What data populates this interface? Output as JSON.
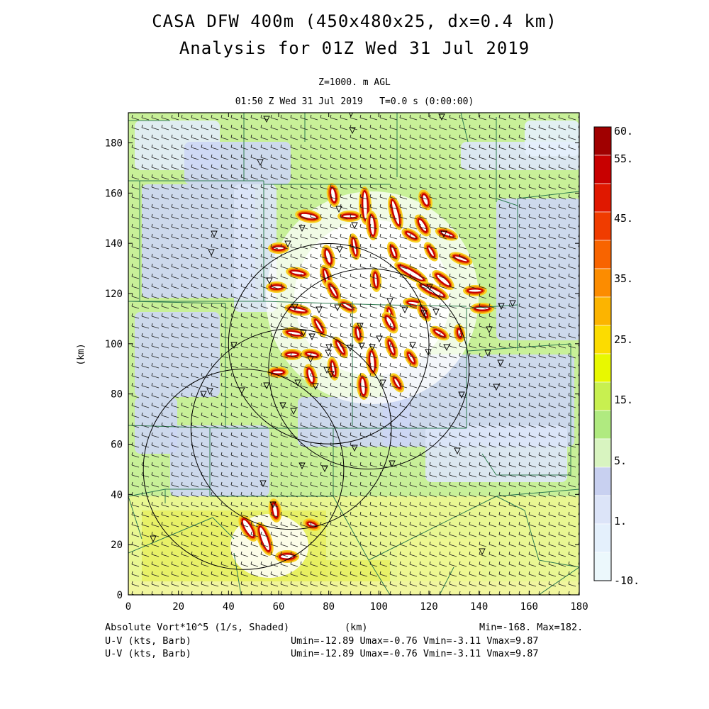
{
  "header": {
    "title_line1": "CASA DFW 400m (450x480x25, dx=0.4 km)",
    "title_line2": "Analysis for 01Z Wed 31 Jul 2019",
    "level": "Z=1000. m AGL",
    "valid_time": "01:50 Z Wed 31 Jul 2019",
    "time_step": "T=0.0 s (0:00:00)"
  },
  "axes": {
    "x_ticks": [
      "0",
      "20",
      "40",
      "60",
      "80",
      "100",
      "120",
      "140",
      "160",
      "180"
    ],
    "y_ticks": [
      "0",
      "20",
      "40",
      "60",
      "80",
      "100",
      "120",
      "140",
      "160",
      "180"
    ],
    "x_label": "(km)",
    "y_label": "(km)",
    "x_range": [
      0,
      180
    ],
    "y_range": [
      0,
      192
    ]
  },
  "colorbar": {
    "labels": [
      "60.",
      "55.",
      "45.",
      "35.",
      "25.",
      "15.",
      "5.",
      "1.",
      "-10."
    ],
    "colors": [
      "#a00000",
      "#c80000",
      "#e01800",
      "#f03c00",
      "#f86400",
      "#fc8c00",
      "#fcb400",
      "#fcdc00",
      "#e8f800",
      "#c8f050",
      "#b0ea80",
      "#d8f4c0",
      "#c8d0f0",
      "#dce4f8",
      "#e4f0fc",
      "#ecf8fc"
    ]
  },
  "footer": {
    "field": "Absolute Vort*10^5 (1/s, Shaded)",
    "wind1": "U-V (kts, Barb)",
    "wind2": "U-V (kts, Barb)",
    "xunit": "(km)",
    "minmax": "Min=-168. Max=182.",
    "uv1": "Umin=-12.89 Umax=-0.76 Vmin=-3.11 Vmax=9.87",
    "uv2": "Umin=-12.89 Umax=-0.76 Vmin=-3.11 Vmax=9.87"
  },
  "radars": [
    {
      "x": 96,
      "y": 90,
      "r": 40
    },
    {
      "x": 80,
      "y": 100,
      "r": 40
    },
    {
      "x": 65,
      "y": 66,
      "r": 40
    },
    {
      "x": 46,
      "y": 50,
      "r": 40
    }
  ]
}
